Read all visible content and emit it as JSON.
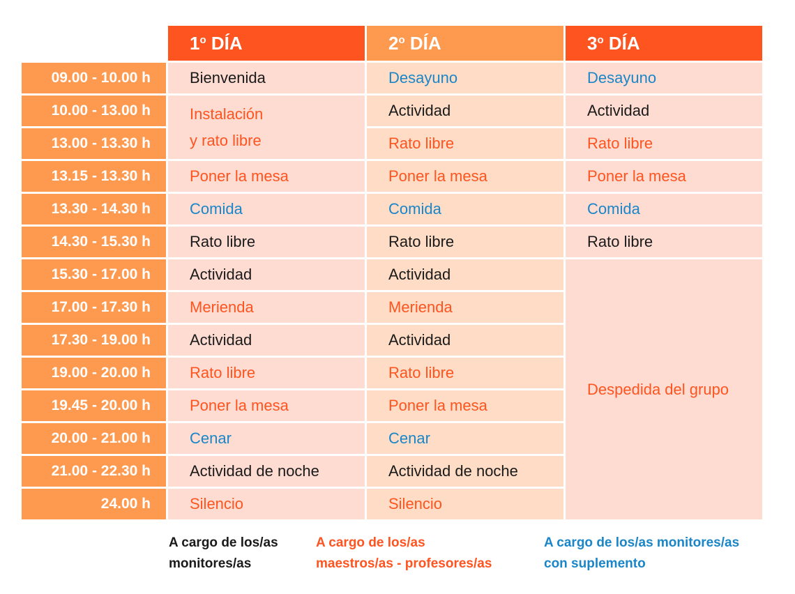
{
  "days": [
    "1º DÍA",
    "2º DÍA",
    "3º DÍA"
  ],
  "day_labels": {
    "d1": {
      "num": "1",
      "ord": "o",
      "rest": " DÍA"
    },
    "d2": {
      "num": "2",
      "ord": "o",
      "rest": " DÍA"
    },
    "d3": {
      "num": "3",
      "ord": "o",
      "rest": " DÍA"
    }
  },
  "times": [
    "09.00 - 10.00 h",
    "10.00 - 13.00 h",
    "13.00 - 13.30 h",
    "13.15 - 13.30 h",
    "13.30 - 14.30 h",
    "14.30 - 15.30 h",
    "15.30 - 17.00 h",
    "17.00 - 17.30 h",
    "17.30 - 19.00 h",
    "19.00 - 20.00 h",
    "19.45 - 20.00 h",
    "20.00 - 21.00 h",
    "21.00 - 22.30 h",
    "24.00 h"
  ],
  "day1": {
    "r0": "Bienvenida",
    "r1_line1": "Instalación",
    "r1_line2": "y rato libre",
    "r3": "Poner la mesa",
    "r4": "Comida",
    "r5": "Rato libre",
    "r6": "Actividad",
    "r7": "Merienda",
    "r8": "Actividad",
    "r9": "Rato libre",
    "r10": "Poner la mesa",
    "r11": "Cenar",
    "r12": "Actividad de noche",
    "r13": "Silencio"
  },
  "day2": {
    "r0": "Desayuno",
    "r1": "Actividad",
    "r2": "Rato libre",
    "r3": "Poner la mesa",
    "r4": "Comida",
    "r5": "Rato libre",
    "r6": "Actividad",
    "r7": "Merienda",
    "r8": "Actividad",
    "r9": "Rato libre",
    "r10": "Poner la mesa",
    "r11": "Cenar",
    "r12": "Actividad de noche",
    "r13": "Silencio"
  },
  "day3": {
    "r0": "Desayuno",
    "r1": "Actividad",
    "r2": "Rato libre",
    "r3": "Poner la mesa",
    "r4": "Comida",
    "r5": "Rato libre",
    "r6": "Despedida del grupo"
  },
  "legend": {
    "monitores_line1": "A cargo de los/as",
    "monitores_line2": "monitores/as",
    "maestros_line1": "A cargo de los/as",
    "maestros_line2": "maestros/as - profesores/as",
    "suplemento_line1": "A cargo de los/as monitores/as",
    "suplemento_line2": "con suplemento"
  },
  "colors": {
    "header_orange": "#fd5420",
    "light_orange": "#fe9a50",
    "cell_pink": "#fedcd2",
    "text_black": "#1a1a1a",
    "text_orange": "#fd5420",
    "text_blue": "#1a86c8"
  }
}
